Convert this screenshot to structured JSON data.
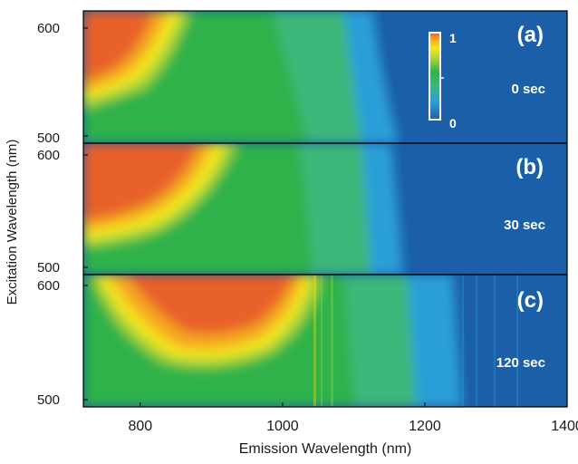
{
  "chart_data": {
    "type": "heatmap",
    "xlabel": "Emission Wavelength (nm)",
    "ylabel": "Excitation Wavelength (nm)",
    "xlim": [
      720,
      1400
    ],
    "x_ticks": [
      800,
      1000,
      1200,
      1400
    ],
    "colorbar": {
      "min_label": "0",
      "max_label": "1",
      "colors": [
        "#1a5fa8",
        "#2a9fd8",
        "#3cb87a",
        "#2fb24a",
        "#a6d336",
        "#f5e61a",
        "#f5a623",
        "#e8602a"
      ]
    },
    "panels": [
      {
        "label": "(a)",
        "time": "0 sec",
        "ylim": [
          490,
          620
        ],
        "y_ticks": [
          500,
          600
        ],
        "peak_emission_nm": 760,
        "peak_excitation_nm": 600
      },
      {
        "label": "(b)",
        "time": "30 sec",
        "ylim": [
          490,
          620
        ],
        "y_ticks": [
          500,
          600
        ],
        "peak_emission_nm": 780,
        "peak_excitation_nm": 600
      },
      {
        "label": "(c)",
        "time": "120 sec",
        "ylim": [
          490,
          620
        ],
        "y_ticks": [
          500,
          600
        ],
        "peak_emission_nm": 900,
        "peak_excitation_nm": 600
      }
    ]
  }
}
